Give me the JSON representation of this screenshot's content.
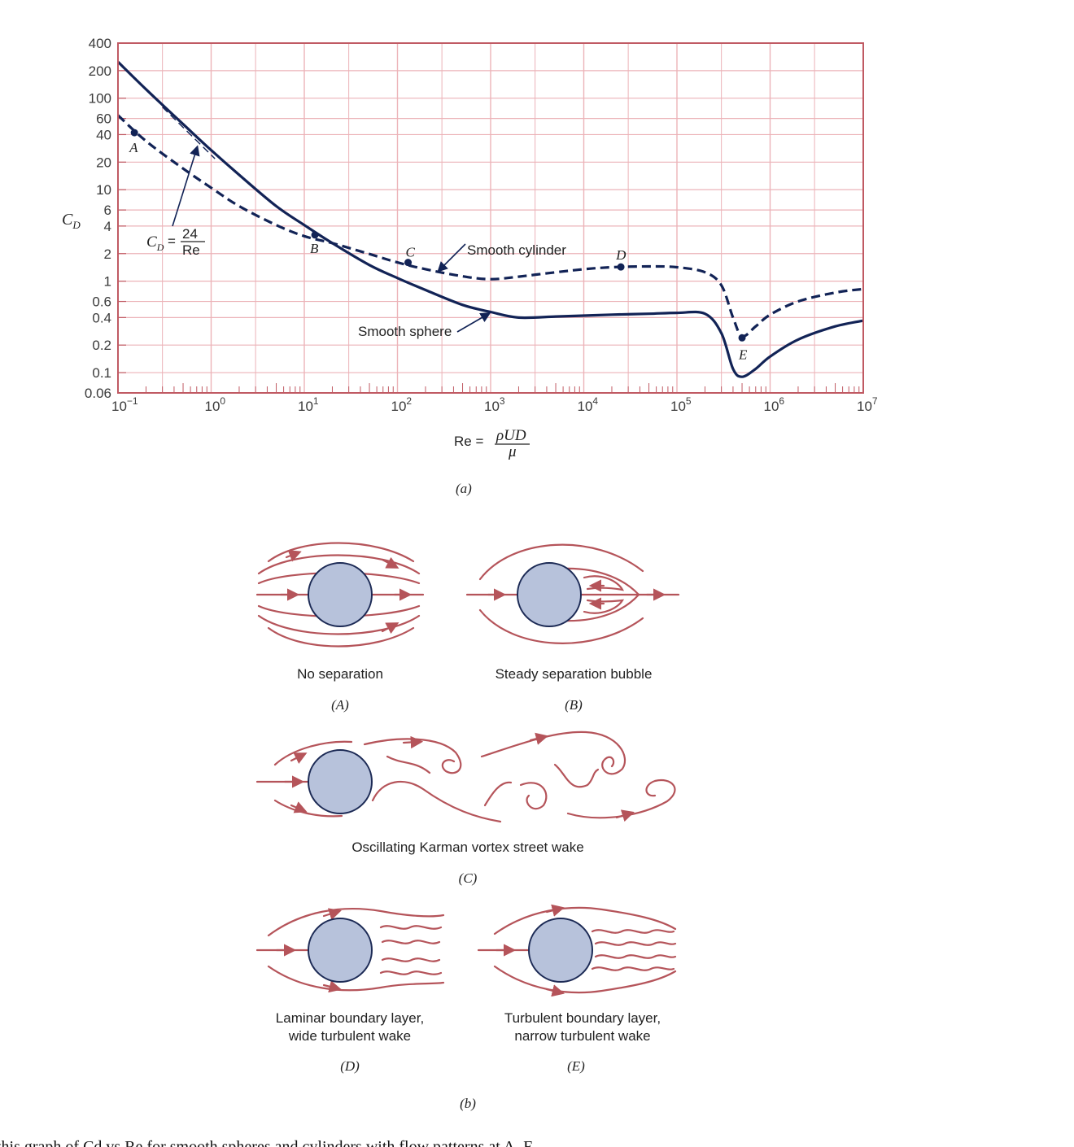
{
  "chart_data": {
    "type": "line",
    "xscale": "log",
    "yscale": "log",
    "xlim": [
      0.1,
      10000000
    ],
    "ylim": [
      0.06,
      400
    ],
    "grid": true,
    "x_ticks": [
      {
        "value": 0.1,
        "base": "10",
        "exp": "−1"
      },
      {
        "value": 1,
        "base": "10",
        "exp": "0"
      },
      {
        "value": 10,
        "base": "10",
        "exp": "1"
      },
      {
        "value": 100,
        "base": "10",
        "exp": "2"
      },
      {
        "value": 1000,
        "base": "10",
        "exp": "3"
      },
      {
        "value": 10000,
        "base": "10",
        "exp": "4"
      },
      {
        "value": 100000,
        "base": "10",
        "exp": "5"
      },
      {
        "value": 1000000,
        "base": "10",
        "exp": "6"
      },
      {
        "value": 10000000,
        "base": "10",
        "exp": "7"
      }
    ],
    "y_ticks": [
      {
        "value": 400,
        "label": "400"
      },
      {
        "value": 200,
        "label": "200"
      },
      {
        "value": 100,
        "label": "100"
      },
      {
        "value": 60,
        "label": "60"
      },
      {
        "value": 40,
        "label": "40"
      },
      {
        "value": 20,
        "label": "20"
      },
      {
        "value": 10,
        "label": "10"
      },
      {
        "value": 6,
        "label": "6"
      },
      {
        "value": 4,
        "label": "4"
      },
      {
        "value": 2,
        "label": "2"
      },
      {
        "value": 1,
        "label": "1"
      },
      {
        "value": 0.6,
        "label": "0.6"
      },
      {
        "value": 0.4,
        "label": "0.4"
      },
      {
        "value": 0.2,
        "label": "0.2"
      },
      {
        "value": 0.1,
        "label": "0.1"
      },
      {
        "value": 0.06,
        "label": "0.06"
      }
    ],
    "ylabel": {
      "main": "C",
      "sub": "D"
    },
    "xlabel": {
      "prefix": "Re =",
      "numerator": "ρUD",
      "denominator": "μ"
    },
    "series": [
      {
        "name": "Smooth sphere",
        "style": "solid",
        "x": [
          0.1,
          0.2,
          0.5,
          1,
          2,
          5,
          10,
          20,
          50,
          100,
          200,
          500,
          1000,
          2000,
          5000,
          10000,
          20000,
          50000,
          100000,
          200000,
          300000,
          400000,
          500000,
          700000,
          1000000,
          2000000,
          5000000,
          10000000
        ],
        "y": [
          250,
          125,
          52,
          27,
          14.5,
          6.6,
          4.1,
          2.6,
          1.5,
          1.08,
          0.8,
          0.55,
          0.46,
          0.4,
          0.41,
          0.42,
          0.43,
          0.44,
          0.45,
          0.44,
          0.27,
          0.11,
          0.09,
          0.11,
          0.15,
          0.23,
          0.32,
          0.37
        ]
      },
      {
        "name": "Smooth cylinder",
        "style": "dashed",
        "x": [
          0.1,
          0.2,
          0.5,
          1,
          2,
          5,
          10,
          20,
          50,
          100,
          200,
          500,
          1000,
          2000,
          5000,
          10000,
          20000,
          50000,
          100000,
          200000,
          300000,
          400000,
          500000,
          700000,
          1000000,
          2000000,
          5000000,
          10000000
        ],
        "y": [
          65,
          34,
          17,
          10.5,
          6.6,
          4.1,
          3.1,
          2.6,
          1.98,
          1.6,
          1.35,
          1.13,
          1.05,
          1.12,
          1.25,
          1.35,
          1.42,
          1.45,
          1.42,
          1.25,
          0.9,
          0.4,
          0.25,
          0.32,
          0.43,
          0.6,
          0.75,
          0.82
        ]
      },
      {
        "name": "",
        "style": "thin-dashed",
        "x": [
          0.3,
          1.1
        ],
        "y": [
          80,
          21.8
        ]
      }
    ],
    "points": [
      {
        "label": "A",
        "x": 0.15,
        "y": 42
      },
      {
        "label": "B",
        "x": 13,
        "y": 3.2
      },
      {
        "label": "C",
        "x": 130,
        "y": 1.6
      },
      {
        "label": "D",
        "x": 25000,
        "y": 1.43
      },
      {
        "label": "E",
        "x": 500000,
        "y": 0.24
      }
    ],
    "annotations": {
      "cylinder_label": "Smooth cylinder",
      "sphere_label": "Smooth sphere",
      "stokes_lhs": "C",
      "stokes_sub": "D",
      "stokes_eq": "=",
      "stokes_num": "24",
      "stokes_den": "Re"
    },
    "panel_label": "(a)"
  },
  "flow_patterns": {
    "A": {
      "caption": "No separation",
      "letter": "(A)"
    },
    "B": {
      "caption": "Steady separation bubble",
      "letter": "(B)"
    },
    "C": {
      "caption": "Oscillating Karman vortex street wake",
      "letter": "(C)"
    },
    "D": {
      "caption_line1": "Laminar boundary layer,",
      "caption_line2": "wide turbulent wake",
      "letter": "(D)"
    },
    "E": {
      "caption_line1": "Turbulent boundary layer,",
      "caption_line2": "narrow turbulent wake",
      "letter": "(E)"
    },
    "panel_label": "(b)"
  },
  "figure_caption": "this graph of Cd vs Re for smooth spheres and cylinders with flow patterns at A–E",
  "colors": {
    "curve": "#122356",
    "grid": "#ecb3b8",
    "frame": "#c05a63",
    "stream": "#b5545a",
    "cylinder_fill": "#b7c2db"
  }
}
